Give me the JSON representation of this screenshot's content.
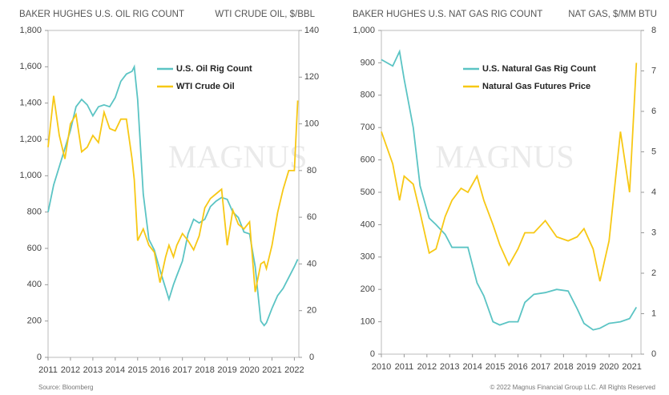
{
  "chart_data": [
    {
      "type": "line",
      "title": "BAKER HUGHES U.S. OIL RIG COUNT",
      "y2_title": "WTI CRUDE OIL, $/BBL",
      "x": [
        2011.0,
        2011.25,
        2011.5,
        2011.75,
        2012.0,
        2012.25,
        2012.5,
        2012.75,
        2013.0,
        2013.25,
        2013.5,
        2013.75,
        2014.0,
        2014.25,
        2014.5,
        2014.75,
        2014.85,
        2015.0,
        2015.25,
        2015.5,
        2015.75,
        2016.0,
        2016.25,
        2016.4,
        2016.6,
        2016.75,
        2017.0,
        2017.25,
        2017.5,
        2017.75,
        2018.0,
        2018.25,
        2018.5,
        2018.75,
        2019.0,
        2019.25,
        2019.5,
        2019.75,
        2020.0,
        2020.25,
        2020.5,
        2020.65,
        2020.75,
        2021.0,
        2021.25,
        2021.5,
        2021.75,
        2022.0,
        2022.15
      ],
      "series": [
        {
          "name": "U.S. Oil Rig Count",
          "color": "#5bc4c4",
          "values": [
            800,
            950,
            1050,
            1150,
            1250,
            1380,
            1420,
            1390,
            1330,
            1380,
            1390,
            1380,
            1430,
            1520,
            1560,
            1575,
            1600,
            1420,
            900,
            650,
            590,
            480,
            380,
            320,
            400,
            450,
            530,
            680,
            760,
            740,
            760,
            830,
            860,
            880,
            870,
            800,
            770,
            690,
            680,
            500,
            200,
            175,
            190,
            270,
            340,
            380,
            440,
            500,
            540
          ]
        },
        {
          "name": "WTI Crude Oil",
          "color": "#f7c815",
          "axis": "y2",
          "values": [
            90,
            112,
            95,
            85,
            100,
            104,
            88,
            90,
            95,
            92,
            105,
            98,
            97,
            102,
            102,
            85,
            76,
            50,
            55,
            48,
            45,
            32,
            43,
            48,
            43,
            48,
            53,
            50,
            46,
            52,
            64,
            68,
            70,
            72,
            48,
            63,
            57,
            55,
            58,
            28,
            40,
            41,
            38,
            48,
            62,
            72,
            80,
            80,
            110
          ]
        }
      ],
      "xlim": [
        2011,
        2022.2
      ],
      "xticks": [
        2011,
        2012,
        2013,
        2014,
        2015,
        2016,
        2017,
        2018,
        2019,
        2020,
        2021,
        2022
      ],
      "ylim": [
        0,
        1800
      ],
      "yticks": [
        0,
        200,
        400,
        600,
        800,
        {
          "value": 1000,
          "label": "1,000"
        },
        {
          "value": 1200,
          "label": "1,200"
        },
        {
          "value": 1400,
          "label": "1,400"
        },
        {
          "value": 1600,
          "label": "1,600"
        },
        {
          "value": 1800,
          "label": "1,800"
        }
      ],
      "y2lim": [
        0,
        140
      ],
      "y2ticks": [
        0,
        20,
        40,
        60,
        80,
        100,
        120,
        140
      ]
    },
    {
      "type": "line",
      "title": "BAKER HUGHES U.S. NAT GAS RIG COUNT",
      "y2_title": "NAT GAS, $/MM BTU",
      "x": [
        2010.0,
        2010.5,
        2010.8,
        2011.0,
        2011.4,
        2011.7,
        2012.1,
        2012.4,
        2012.8,
        2013.1,
        2013.5,
        2013.8,
        2014.2,
        2014.5,
        2014.9,
        2015.2,
        2015.6,
        2016.0,
        2016.3,
        2016.7,
        2017.2,
        2017.7,
        2018.2,
        2018.6,
        2018.9,
        2019.3,
        2019.6,
        2020.0,
        2020.5,
        2020.9,
        2021.2
      ],
      "series": [
        {
          "name": "U.S. Natural Gas Rig Count",
          "color": "#5bc4c4",
          "values": [
            910,
            890,
            935,
            850,
            700,
            520,
            420,
            400,
            370,
            330,
            330,
            330,
            220,
            180,
            100,
            90,
            100,
            100,
            160,
            185,
            190,
            200,
            195,
            140,
            95,
            75,
            80,
            95,
            100,
            110,
            145
          ]
        },
        {
          "name": "Natural Gas Futures Price",
          "color": "#f7c815",
          "axis": "y2",
          "values": [
            5.5,
            4.7,
            3.8,
            4.4,
            4.2,
            3.5,
            2.5,
            2.6,
            3.4,
            3.8,
            4.1,
            4.0,
            4.4,
            3.8,
            3.2,
            2.7,
            2.2,
            2.6,
            3.0,
            3.0,
            3.3,
            2.9,
            2.8,
            2.9,
            3.1,
            2.6,
            1.8,
            2.8,
            5.5,
            4.0,
            7.2
          ]
        }
      ],
      "xlim": [
        2010,
        2021.4
      ],
      "xticks": [
        2010,
        2011,
        2012,
        2013,
        2014,
        2015,
        2016,
        2017,
        2018,
        2019,
        2020,
        2021
      ],
      "ylim": [
        0,
        1000
      ],
      "yticks": [
        0,
        100,
        200,
        300,
        400,
        500,
        600,
        700,
        800,
        900,
        {
          "value": 1000,
          "label": "1,000"
        }
      ],
      "y2lim": [
        0,
        8
      ],
      "y2ticks": [
        0,
        1,
        2,
        3,
        4,
        5,
        6,
        7,
        8
      ]
    }
  ],
  "watermark": "MAGNUS",
  "footer": {
    "source": "Source: Bloomberg",
    "copyright": "© 2022 Magnus Financial Group LLC. All Rights Reserved"
  }
}
